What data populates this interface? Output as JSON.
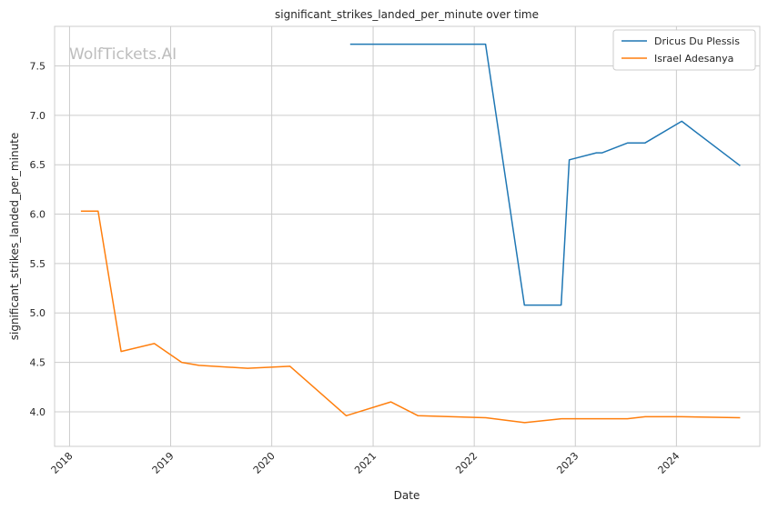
{
  "chart_data": {
    "type": "line",
    "title": "significant_strikes_landed_per_minute over time",
    "xlabel": "Date",
    "ylabel": "significant_strikes_landed_per_minute",
    "watermark": "WolfTickets.AI",
    "x_ticks": [
      "2018",
      "2019",
      "2020",
      "2021",
      "2022",
      "2023",
      "2024"
    ],
    "y_ticks": [
      "4.0",
      "4.5",
      "5.0",
      "5.5",
      "6.0",
      "6.5",
      "7.0",
      "7.5"
    ],
    "xlim": [
      "2017-11-08",
      "2024-10-28"
    ],
    "ylim": [
      3.65,
      7.9
    ],
    "grid": true,
    "legend_position": "top-right",
    "series": [
      {
        "name": "Dricus Du Plessis",
        "color": "#1f77b4",
        "points": [
          [
            "2020-10-10",
            7.72
          ],
          [
            "2022-02-11",
            7.72
          ],
          [
            "2022-07-01",
            5.08
          ],
          [
            "2022-11-11",
            5.08
          ],
          [
            "2022-12-10",
            6.55
          ],
          [
            "2023-03-18",
            6.62
          ],
          [
            "2023-04-08",
            6.62
          ],
          [
            "2023-07-08",
            6.72
          ],
          [
            "2023-09-09",
            6.72
          ],
          [
            "2024-01-20",
            6.94
          ],
          [
            "2024-08-18",
            6.49
          ]
        ]
      },
      {
        "name": "Israel Adesanya",
        "color": "#ff7f0e",
        "points": [
          [
            "2018-02-11",
            6.03
          ],
          [
            "2018-04-14",
            6.03
          ],
          [
            "2018-07-06",
            4.61
          ],
          [
            "2018-11-03",
            4.69
          ],
          [
            "2019-02-10",
            4.5
          ],
          [
            "2019-04-13",
            4.47
          ],
          [
            "2019-10-06",
            4.44
          ],
          [
            "2020-03-07",
            4.46
          ],
          [
            "2020-09-26",
            3.96
          ],
          [
            "2021-03-06",
            4.1
          ],
          [
            "2021-06-12",
            3.96
          ],
          [
            "2022-02-12",
            3.94
          ],
          [
            "2022-07-02",
            3.89
          ],
          [
            "2022-11-12",
            3.93
          ],
          [
            "2023-07-08",
            3.93
          ],
          [
            "2023-09-10",
            3.95
          ],
          [
            "2024-01-20",
            3.95
          ],
          [
            "2024-08-18",
            3.94
          ]
        ]
      }
    ]
  }
}
